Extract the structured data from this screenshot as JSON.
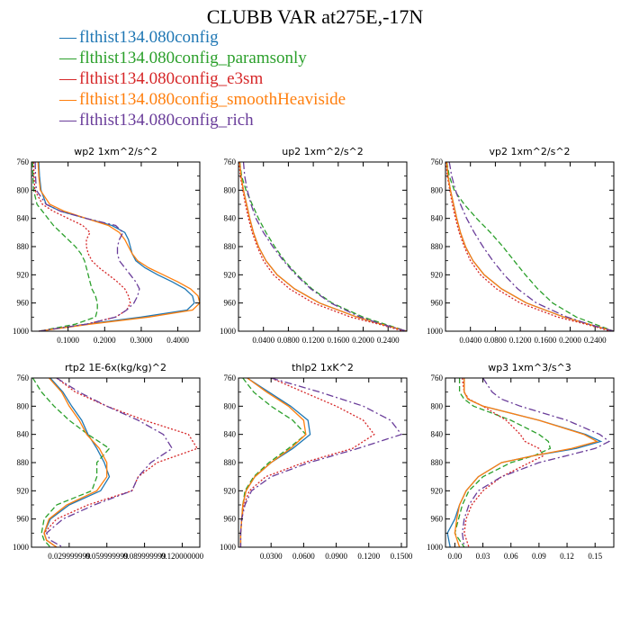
{
  "title": "CLUBB VAR at275E,-17N",
  "legend": [
    {
      "label": "flthist134.080config",
      "color": "#1f77b4"
    },
    {
      "label": "flthist134.080config_paramsonly",
      "color": "#2ca02c"
    },
    {
      "label": "flthist134.080config_e3sm",
      "color": "#d62728"
    },
    {
      "label": "flthist134.080config_smoothHeaviside",
      "color": "#ff7f0e"
    },
    {
      "label": "flthist134.080config_rich",
      "color": "#6a3d9a"
    }
  ],
  "legend_symbol": "—",
  "chart_data": [
    {
      "type": "line",
      "title": "wp2   1xm^2/s^2",
      "xlim": [
        0.0,
        0.46
      ],
      "ylim": [
        760,
        1000
      ],
      "yticks": [
        760,
        800,
        840,
        880,
        920,
        960,
        1000
      ],
      "xticks": [
        0.1,
        0.2,
        0.3,
        0.4
      ],
      "xtick_labels": [
        "0.1000",
        "0.2000",
        "0.3000",
        "0.4000"
      ],
      "y": [
        760,
        780,
        800,
        820,
        830,
        840,
        850,
        860,
        870,
        880,
        890,
        900,
        910,
        920,
        930,
        940,
        950,
        960,
        970,
        980,
        990,
        1000
      ],
      "series": [
        {
          "values": [
            0.02,
            0.022,
            0.026,
            0.04,
            0.08,
            0.15,
            0.22,
            0.255,
            0.265,
            0.27,
            0.275,
            0.285,
            0.31,
            0.345,
            0.385,
            0.42,
            0.44,
            0.445,
            0.425,
            0.3,
            0.15,
            0.02
          ]
        },
        {
          "values": [
            0.003,
            0.004,
            0.006,
            0.015,
            0.03,
            0.045,
            0.06,
            0.08,
            0.1,
            0.12,
            0.135,
            0.145,
            0.15,
            0.155,
            0.16,
            0.165,
            0.175,
            0.18,
            0.18,
            0.175,
            0.12,
            0.02
          ]
        },
        {
          "values": [
            0.006,
            0.007,
            0.009,
            0.03,
            0.06,
            0.1,
            0.14,
            0.16,
            0.15,
            0.15,
            0.155,
            0.165,
            0.185,
            0.21,
            0.235,
            0.255,
            0.265,
            0.27,
            0.26,
            0.23,
            0.15,
            0.02
          ]
        },
        {
          "values": [
            0.018,
            0.02,
            0.024,
            0.05,
            0.09,
            0.15,
            0.21,
            0.24,
            0.255,
            0.265,
            0.275,
            0.29,
            0.32,
            0.36,
            0.4,
            0.435,
            0.455,
            0.46,
            0.44,
            0.32,
            0.16,
            0.02
          ]
        },
        {
          "values": [
            0.01,
            0.011,
            0.013,
            0.04,
            0.08,
            0.15,
            0.23,
            0.25,
            0.24,
            0.235,
            0.235,
            0.24,
            0.255,
            0.27,
            0.285,
            0.295,
            0.29,
            0.28,
            0.26,
            0.23,
            0.15,
            0.02
          ]
        }
      ]
    },
    {
      "type": "line",
      "title": "up2   1xm^2/s^2",
      "xlim": [
        0.0,
        0.27
      ],
      "ylim": [
        760,
        1000
      ],
      "yticks": [
        760,
        800,
        840,
        880,
        920,
        960,
        1000
      ],
      "xticks": [
        0.04,
        0.08,
        0.12,
        0.16,
        0.2,
        0.24
      ],
      "xtick_labels": [
        "0.0400",
        "0.0800",
        "0.1200",
        "0.1600",
        "0.2000",
        "0.2400"
      ],
      "y": [
        760,
        780,
        800,
        820,
        840,
        860,
        880,
        900,
        920,
        940,
        960,
        980,
        990,
        1000
      ],
      "series": [
        {
          "values": [
            0.002,
            0.004,
            0.008,
            0.013,
            0.018,
            0.024,
            0.032,
            0.044,
            0.062,
            0.09,
            0.13,
            0.19,
            0.23,
            0.27
          ]
        },
        {
          "values": [
            0.002,
            0.005,
            0.012,
            0.022,
            0.032,
            0.044,
            0.058,
            0.074,
            0.094,
            0.118,
            0.15,
            0.2,
            0.235,
            0.27
          ]
        },
        {
          "values": [
            0.001,
            0.003,
            0.007,
            0.011,
            0.016,
            0.022,
            0.03,
            0.04,
            0.056,
            0.082,
            0.12,
            0.18,
            0.225,
            0.265
          ]
        },
        {
          "values": [
            0.002,
            0.004,
            0.008,
            0.013,
            0.018,
            0.024,
            0.032,
            0.044,
            0.062,
            0.09,
            0.13,
            0.19,
            0.23,
            0.27
          ]
        },
        {
          "values": [
            0.008,
            0.01,
            0.014,
            0.02,
            0.028,
            0.04,
            0.055,
            0.072,
            0.092,
            0.116,
            0.148,
            0.195,
            0.23,
            0.27
          ]
        }
      ]
    },
    {
      "type": "line",
      "title": "vp2   1xm^2/s^2",
      "xlim": [
        0.0,
        0.27
      ],
      "ylim": [
        760,
        1000
      ],
      "yticks": [
        760,
        800,
        840,
        880,
        920,
        960,
        1000
      ],
      "xticks": [
        0.04,
        0.08,
        0.12,
        0.16,
        0.2,
        0.24
      ],
      "xtick_labels": [
        "0.0400",
        "0.0800",
        "0.1200",
        "0.1600",
        "0.2000",
        "0.2400"
      ],
      "y": [
        760,
        780,
        800,
        820,
        840,
        860,
        880,
        900,
        920,
        940,
        960,
        980,
        990,
        1000
      ],
      "series": [
        {
          "values": [
            0.002,
            0.004,
            0.008,
            0.013,
            0.018,
            0.024,
            0.032,
            0.044,
            0.062,
            0.09,
            0.13,
            0.19,
            0.23,
            0.27
          ]
        },
        {
          "values": [
            0.002,
            0.006,
            0.014,
            0.03,
            0.05,
            0.072,
            0.092,
            0.11,
            0.128,
            0.148,
            0.172,
            0.21,
            0.24,
            0.27
          ]
        },
        {
          "values": [
            0.001,
            0.003,
            0.007,
            0.011,
            0.016,
            0.022,
            0.03,
            0.04,
            0.056,
            0.082,
            0.12,
            0.18,
            0.225,
            0.265
          ]
        },
        {
          "values": [
            0.002,
            0.004,
            0.008,
            0.013,
            0.018,
            0.024,
            0.032,
            0.044,
            0.062,
            0.09,
            0.13,
            0.19,
            0.23,
            0.27
          ]
        },
        {
          "values": [
            0.006,
            0.01,
            0.016,
            0.024,
            0.034,
            0.046,
            0.06,
            0.076,
            0.094,
            0.116,
            0.146,
            0.195,
            0.23,
            0.27
          ]
        }
      ]
    },
    {
      "type": "line",
      "title": "rtp2   1E-6x(kg/kg)^2",
      "xlim": [
        0.0,
        0.134
      ],
      "ylim": [
        760,
        1000
      ],
      "yticks": [
        760,
        800,
        840,
        880,
        920,
        960,
        1000
      ],
      "xticks": [
        0.03,
        0.06,
        0.09,
        0.12
      ],
      "xtick_labels": [
        "0.029999999",
        "0.059999999",
        "0.089999999",
        "0.120000000"
      ],
      "y": [
        760,
        780,
        800,
        820,
        840,
        860,
        880,
        900,
        920,
        940,
        960,
        980,
        990,
        1000
      ],
      "series": [
        {
          "values": [
            0.015,
            0.025,
            0.032,
            0.04,
            0.045,
            0.052,
            0.058,
            0.062,
            0.055,
            0.03,
            0.015,
            0.01,
            0.012,
            0.02
          ]
        },
        {
          "values": [
            0.001,
            0.008,
            0.018,
            0.03,
            0.045,
            0.062,
            0.052,
            0.052,
            0.048,
            0.02,
            0.01,
            0.008,
            0.01,
            0.015
          ]
        },
        {
          "values": [
            0.02,
            0.035,
            0.06,
            0.09,
            0.125,
            0.132,
            0.1,
            0.085,
            0.08,
            0.045,
            0.02,
            0.01,
            0.012,
            0.02
          ]
        },
        {
          "values": [
            0.014,
            0.024,
            0.03,
            0.038,
            0.044,
            0.054,
            0.06,
            0.06,
            0.052,
            0.028,
            0.014,
            0.01,
            0.012,
            0.02
          ]
        },
        {
          "values": [
            0.02,
            0.038,
            0.06,
            0.085,
            0.105,
            0.112,
            0.095,
            0.085,
            0.08,
            0.05,
            0.025,
            0.012,
            0.015,
            0.025
          ]
        }
      ]
    },
    {
      "type": "line",
      "title": "thlp2   1xK^2",
      "xlim": [
        0.0,
        0.155
      ],
      "ylim": [
        760,
        1000
      ],
      "yticks": [
        760,
        800,
        840,
        880,
        920,
        960,
        1000
      ],
      "xticks": [
        0.03,
        0.06,
        0.09,
        0.12,
        0.15
      ],
      "xtick_labels": [
        "0.0300",
        "0.0600",
        "0.0900",
        "0.1200",
        "0.1500"
      ],
      "y": [
        760,
        780,
        800,
        820,
        840,
        860,
        880,
        900,
        920,
        940,
        960,
        980,
        990,
        1000
      ],
      "series": [
        {
          "values": [
            0.008,
            0.028,
            0.048,
            0.064,
            0.066,
            0.05,
            0.03,
            0.015,
            0.007,
            0.004,
            0.003,
            0.002,
            0.002,
            0.002
          ]
        },
        {
          "values": [
            0.004,
            0.014,
            0.03,
            0.05,
            0.062,
            0.046,
            0.028,
            0.014,
            0.006,
            0.004,
            0.003,
            0.002,
            0.002,
            0.002
          ]
        },
        {
          "values": [
            0.03,
            0.06,
            0.09,
            0.115,
            0.125,
            0.105,
            0.06,
            0.025,
            0.01,
            0.005,
            0.003,
            0.002,
            0.002,
            0.002
          ]
        },
        {
          "values": [
            0.008,
            0.026,
            0.046,
            0.06,
            0.062,
            0.048,
            0.03,
            0.015,
            0.007,
            0.004,
            0.003,
            0.002,
            0.002,
            0.002
          ]
        },
        {
          "values": [
            0.03,
            0.075,
            0.115,
            0.14,
            0.15,
            0.11,
            0.065,
            0.03,
            0.012,
            0.006,
            0.003,
            0.002,
            0.002,
            0.002
          ]
        }
      ]
    },
    {
      "type": "line",
      "title": "wp3   1xm^3/s^3",
      "xlim": [
        -0.01,
        0.17
      ],
      "ylim": [
        760,
        1000
      ],
      "yticks": [
        760,
        800,
        840,
        880,
        920,
        960,
        1000
      ],
      "xticks": [
        0.0,
        0.03,
        0.06,
        0.09,
        0.12,
        0.15
      ],
      "xtick_labels": [
        "0.00",
        "0.03",
        "0.06",
        "0.09",
        "0.12",
        "0.15"
      ],
      "y": [
        760,
        780,
        790,
        800,
        820,
        840,
        850,
        860,
        870,
        880,
        900,
        920,
        940,
        960,
        980,
        1000
      ],
      "series": [
        {
          "values": [
            0.01,
            0.01,
            0.014,
            0.03,
            0.09,
            0.14,
            0.156,
            0.13,
            0.085,
            0.05,
            0.025,
            0.012,
            0.005,
            0.0,
            -0.008,
            -0.005
          ]
        },
        {
          "values": [
            0.005,
            0.005,
            0.01,
            0.02,
            0.06,
            0.09,
            0.1,
            0.102,
            0.085,
            0.06,
            0.03,
            0.015,
            0.008,
            0.004,
            0.0,
            0.01
          ]
        },
        {
          "values": [
            0.008,
            0.01,
            0.015,
            0.03,
            0.055,
            0.07,
            0.075,
            0.09,
            0.095,
            0.08,
            0.05,
            0.03,
            0.018,
            0.012,
            0.01,
            0.015
          ]
        },
        {
          "values": [
            0.01,
            0.01,
            0.014,
            0.03,
            0.09,
            0.138,
            0.152,
            0.125,
            0.085,
            0.05,
            0.025,
            0.012,
            0.005,
            0.002,
            0.0,
            0.005
          ]
        },
        {
          "values": [
            0.03,
            0.04,
            0.05,
            0.07,
            0.12,
            0.155,
            0.165,
            0.15,
            0.12,
            0.09,
            0.05,
            0.025,
            0.015,
            0.01,
            0.008,
            0.01
          ]
        }
      ]
    }
  ]
}
